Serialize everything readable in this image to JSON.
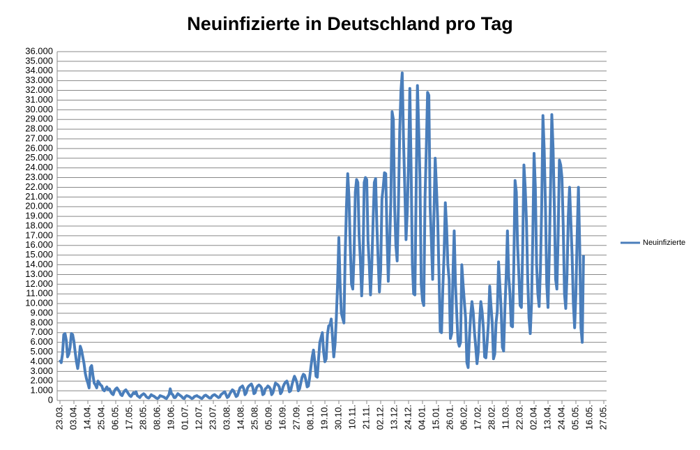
{
  "chart_data": {
    "type": "line",
    "title": "Neuinfizierte in Deutschland pro Tag",
    "categories": [
      "23.03.",
      null,
      null,
      null,
      null,
      null,
      null,
      null,
      null,
      null,
      null,
      "03.04.",
      null,
      null,
      null,
      null,
      null,
      null,
      null,
      null,
      null,
      null,
      "14.04.",
      null,
      null,
      null,
      null,
      null,
      null,
      null,
      null,
      null,
      null,
      "25.04.",
      null,
      null,
      null,
      null,
      null,
      null,
      null,
      null,
      null,
      null,
      "06.05.",
      null,
      null,
      null,
      null,
      null,
      null,
      null,
      null,
      null,
      null,
      "17.05.",
      null,
      null,
      null,
      null,
      null,
      null,
      null,
      null,
      null,
      null,
      "28.05.",
      null,
      null,
      null,
      null,
      null,
      null,
      null,
      null,
      null,
      null,
      "08.06.",
      null,
      null,
      null,
      null,
      null,
      null,
      null,
      null,
      null,
      null,
      "19.06.",
      null,
      null,
      null,
      null,
      null,
      null,
      null,
      null,
      null,
      null,
      "01.07.",
      null,
      null,
      null,
      null,
      null,
      null,
      null,
      null,
      null,
      null,
      "12.07.",
      null,
      null,
      null,
      null,
      null,
      null,
      null,
      null,
      null,
      null,
      "23.07.",
      null,
      null,
      null,
      null,
      null,
      null,
      null,
      null,
      null,
      null,
      "03.08.",
      null,
      null,
      null,
      null,
      null,
      null,
      null,
      null,
      null,
      null,
      "14.08.",
      null,
      null,
      null,
      null,
      null,
      null,
      null,
      null,
      null,
      null,
      "25.08.",
      null,
      null,
      null,
      null,
      null,
      null,
      null,
      null,
      null,
      null,
      "05.09.",
      null,
      null,
      null,
      null,
      null,
      null,
      null,
      null,
      null,
      null,
      "16.09.",
      null,
      null,
      null,
      null,
      null,
      null,
      null,
      null,
      null,
      null,
      "27.09.",
      null,
      null,
      null,
      null,
      null,
      null,
      null,
      null,
      null,
      null,
      "08.10.",
      null,
      null,
      null,
      null,
      null,
      null,
      null,
      null,
      null,
      null,
      "19.10.",
      null,
      null,
      null,
      null,
      null,
      null,
      null,
      null,
      null,
      null,
      "30.10.",
      null,
      null,
      null,
      null,
      null,
      null,
      null,
      null,
      null,
      null,
      "10.11.",
      null,
      null,
      null,
      null,
      null,
      null,
      null,
      null,
      null,
      null,
      "21.11.",
      null,
      null,
      null,
      null,
      null,
      null,
      null,
      null,
      null,
      null,
      "02.12.",
      null,
      null,
      null,
      null,
      null,
      null,
      null,
      null,
      null,
      null,
      "13.12.",
      null,
      null,
      null,
      null,
      null,
      null,
      null,
      null,
      null,
      null,
      "24.12.",
      null,
      null,
      null,
      null,
      null,
      null,
      null,
      null,
      null,
      null,
      "04.01.",
      null,
      null,
      null,
      null,
      null,
      null,
      null,
      null,
      null,
      null,
      "15.01.",
      null,
      null,
      null,
      null,
      null,
      null,
      null,
      null,
      null,
      null,
      "26.01.",
      null,
      null,
      null,
      null,
      null,
      null,
      null,
      null,
      null,
      null,
      "06.02.",
      null,
      null,
      null,
      null,
      null,
      null,
      null,
      null,
      null,
      null,
      "17.02.",
      null,
      null,
      null,
      null,
      null,
      null,
      null,
      null,
      null,
      null,
      "28.02.",
      null,
      null,
      null,
      null,
      null,
      null,
      null,
      null,
      null,
      null,
      "11.03.",
      null,
      null,
      null,
      null,
      null,
      null,
      null,
      null,
      null,
      null,
      "22.03.",
      null,
      null,
      null,
      null,
      null,
      null,
      null,
      null,
      null,
      null,
      "02.04.",
      null,
      null,
      null,
      null,
      null,
      null,
      null,
      null,
      null,
      null,
      "13.04.",
      null,
      null,
      null,
      null,
      null,
      null,
      null,
      null,
      null,
      null,
      "24.04.",
      null,
      null,
      null,
      null,
      null,
      null,
      null,
      null,
      null,
      null,
      "05.05.",
      null,
      null,
      null,
      null,
      null,
      null,
      null,
      null,
      null,
      null,
      "16.05.",
      null,
      null,
      null,
      null,
      null,
      null,
      null,
      null,
      null,
      null,
      "27.05."
    ],
    "series": [
      {
        "name": "Neuinfizierte",
        "color": "#4a7ebb",
        "values": [
          4200,
          3900,
          4800,
          6800,
          6900,
          6200,
          4500,
          4800,
          5500,
          6900,
          6800,
          6100,
          5000,
          4000,
          3300,
          4200,
          5600,
          5200,
          4500,
          3800,
          2800,
          2200,
          1800,
          1300,
          3400,
          3600,
          2600,
          1800,
          1600,
          1300,
          2000,
          1800,
          1600,
          1500,
          1100,
          1000,
          1200,
          1400,
          1100,
          1200,
          900,
          700,
          600,
          1000,
          1200,
          1300,
          1100,
          900,
          600,
          500,
          800,
          1000,
          1100,
          900,
          700,
          500,
          400,
          600,
          800,
          700,
          900,
          500,
          400,
          300,
          500,
          600,
          700,
          600,
          400,
          300,
          250,
          400,
          600,
          500,
          450,
          350,
          250,
          200,
          300,
          500,
          450,
          400,
          350,
          250,
          200,
          400,
          600,
          1200,
          700,
          600,
          300,
          300,
          500,
          700,
          600,
          500,
          400,
          250,
          200,
          400,
          500,
          450,
          400,
          300,
          200,
          250,
          400,
          450,
          500,
          400,
          350,
          250,
          200,
          350,
          500,
          550,
          450,
          350,
          250,
          250,
          450,
          550,
          600,
          500,
          400,
          300,
          350,
          600,
          700,
          800,
          900,
          600,
          300,
          400,
          700,
          900,
          1100,
          1000,
          700,
          400,
          500,
          900,
          1300,
          1400,
          1500,
          1200,
          600,
          800,
          1300,
          1500,
          1600,
          1700,
          1400,
          700,
          800,
          1300,
          1500,
          1600,
          1500,
          1300,
          600,
          700,
          1200,
          1300,
          1500,
          1400,
          1200,
          600,
          800,
          1300,
          1800,
          1700,
          1600,
          1400,
          700,
          900,
          1400,
          1700,
          1900,
          2000,
          1600,
          900,
          1000,
          1600,
          2100,
          2500,
          2200,
          1800,
          1000,
          1200,
          1800,
          2400,
          2700,
          2600,
          2100,
          1400,
          1500,
          2400,
          3500,
          4500,
          5200,
          4000,
          2500,
          2400,
          4300,
          6000,
          6500,
          7000,
          5000,
          4000,
          4300,
          6800,
          7700,
          7800,
          8400,
          6500,
          4500,
          5800,
          8500,
          12000,
          16800,
          12000,
          9000,
          8500,
          8000,
          15000,
          20000,
          23400,
          21000,
          16000,
          12000,
          11500,
          15000,
          21500,
          22800,
          22500,
          17000,
          14500,
          10800,
          14000,
          22500,
          23000,
          22800,
          16500,
          14000,
          10900,
          14000,
          18500,
          22500,
          22900,
          18000,
          14500,
          11200,
          13500,
          20800,
          22000,
          23500,
          23400,
          17000,
          12300,
          16000,
          20500,
          29800,
          29000,
          20000,
          16000,
          14400,
          20000,
          27700,
          32000,
          33800,
          27000,
          22000,
          16600,
          19500,
          24700,
          32200,
          24000,
          14000,
          11000,
          10900,
          22000,
          32500,
          28000,
          22900,
          12000,
          10300,
          9800,
          21000,
          26000,
          31800,
          31500,
          20000,
          16500,
          12500,
          19000,
          25000,
          22000,
          18500,
          13000,
          7100,
          7000,
          11500,
          15000,
          20400,
          17900,
          14000,
          12500,
          6400,
          6900,
          13000,
          17500,
          12000,
          9000,
          6100,
          5600,
          6000,
          14000,
          12000,
          10200,
          8500,
          3900,
          3400,
          6500,
          8800,
          10200,
          9100,
          7000,
          5500,
          3800,
          5000,
          8000,
          10200,
          9200,
          7500,
          4500,
          4400,
          6000,
          8000,
          11800,
          9800,
          8000,
          4300,
          4800,
          8000,
          9200,
          14300,
          11900,
          9500,
          5500,
          5100,
          9500,
          12800,
          17500,
          12800,
          11000,
          7700,
          7600,
          13800,
          22700,
          21500,
          16000,
          13000,
          9800,
          9600,
          15500,
          24300,
          22000,
          18500,
          12500,
          8500,
          6900,
          10000,
          17000,
          25500,
          22000,
          14000,
          11000,
          9700,
          13500,
          20000,
          29400,
          25800,
          20000,
          12000,
          9600,
          15000,
          22000,
          29500,
          26000,
          20000,
          12500,
          11500,
          17000,
          24800,
          24300,
          23000,
          18000,
          11000,
          9500,
          13000,
          19000,
          22000,
          18500,
          15000,
          10000,
          7500,
          11000,
          17000,
          22000,
          16000,
          7500,
          6000,
          15000,
          null,
          null,
          null,
          null,
          null,
          null,
          null,
          null,
          null,
          null,
          null,
          null,
          null,
          null,
          null,
          null
        ]
      }
    ],
    "ylim": [
      0,
      36000
    ],
    "yticks": [
      0,
      {
        "value": 1000,
        "label": "1.000"
      },
      {
        "value": 2000,
        "label": "2.000"
      },
      {
        "value": 3000,
        "label": "3.000"
      },
      {
        "value": 4000,
        "label": "4.000"
      },
      {
        "value": 5000,
        "label": "5.000"
      },
      {
        "value": 6000,
        "label": "6.000"
      },
      {
        "value": 7000,
        "label": "7.000"
      },
      {
        "value": 8000,
        "label": "8.000"
      },
      {
        "value": 9000,
        "label": "9.000"
      },
      {
        "value": 10000,
        "label": "10.000"
      },
      {
        "value": 11000,
        "label": "11.000"
      },
      {
        "value": 12000,
        "label": "12.000"
      },
      {
        "value": 13000,
        "label": "13.000"
      },
      {
        "value": 14000,
        "label": "14.000"
      },
      {
        "value": 15000,
        "label": "15.000"
      },
      {
        "value": 16000,
        "label": "16.000"
      },
      {
        "value": 17000,
        "label": "17.000"
      },
      {
        "value": 18000,
        "label": "18.000"
      },
      {
        "value": 19000,
        "label": "19.000"
      },
      {
        "value": 20000,
        "label": "20.000"
      },
      {
        "value": 21000,
        "label": "21.000"
      },
      {
        "value": 22000,
        "label": "22.000"
      },
      {
        "value": 23000,
        "label": "23.000"
      },
      {
        "value": 24000,
        "label": "24.000"
      },
      {
        "value": 25000,
        "label": "25.000"
      },
      {
        "value": 26000,
        "label": "26.000"
      },
      {
        "value": 27000,
        "label": "27.000"
      },
      {
        "value": 28000,
        "label": "28.000"
      },
      {
        "value": 29000,
        "label": "29.000"
      },
      {
        "value": 30000,
        "label": "30.000"
      },
      {
        "value": 31000,
        "label": "31.000"
      },
      {
        "value": 32000,
        "label": "32.000"
      },
      {
        "value": 33000,
        "label": "33.000"
      },
      {
        "value": 34000,
        "label": "34.000"
      },
      {
        "value": 35000,
        "label": "35.000"
      },
      {
        "value": 36000,
        "label": "36.000"
      }
    ],
    "grid": true,
    "legend": "right"
  }
}
